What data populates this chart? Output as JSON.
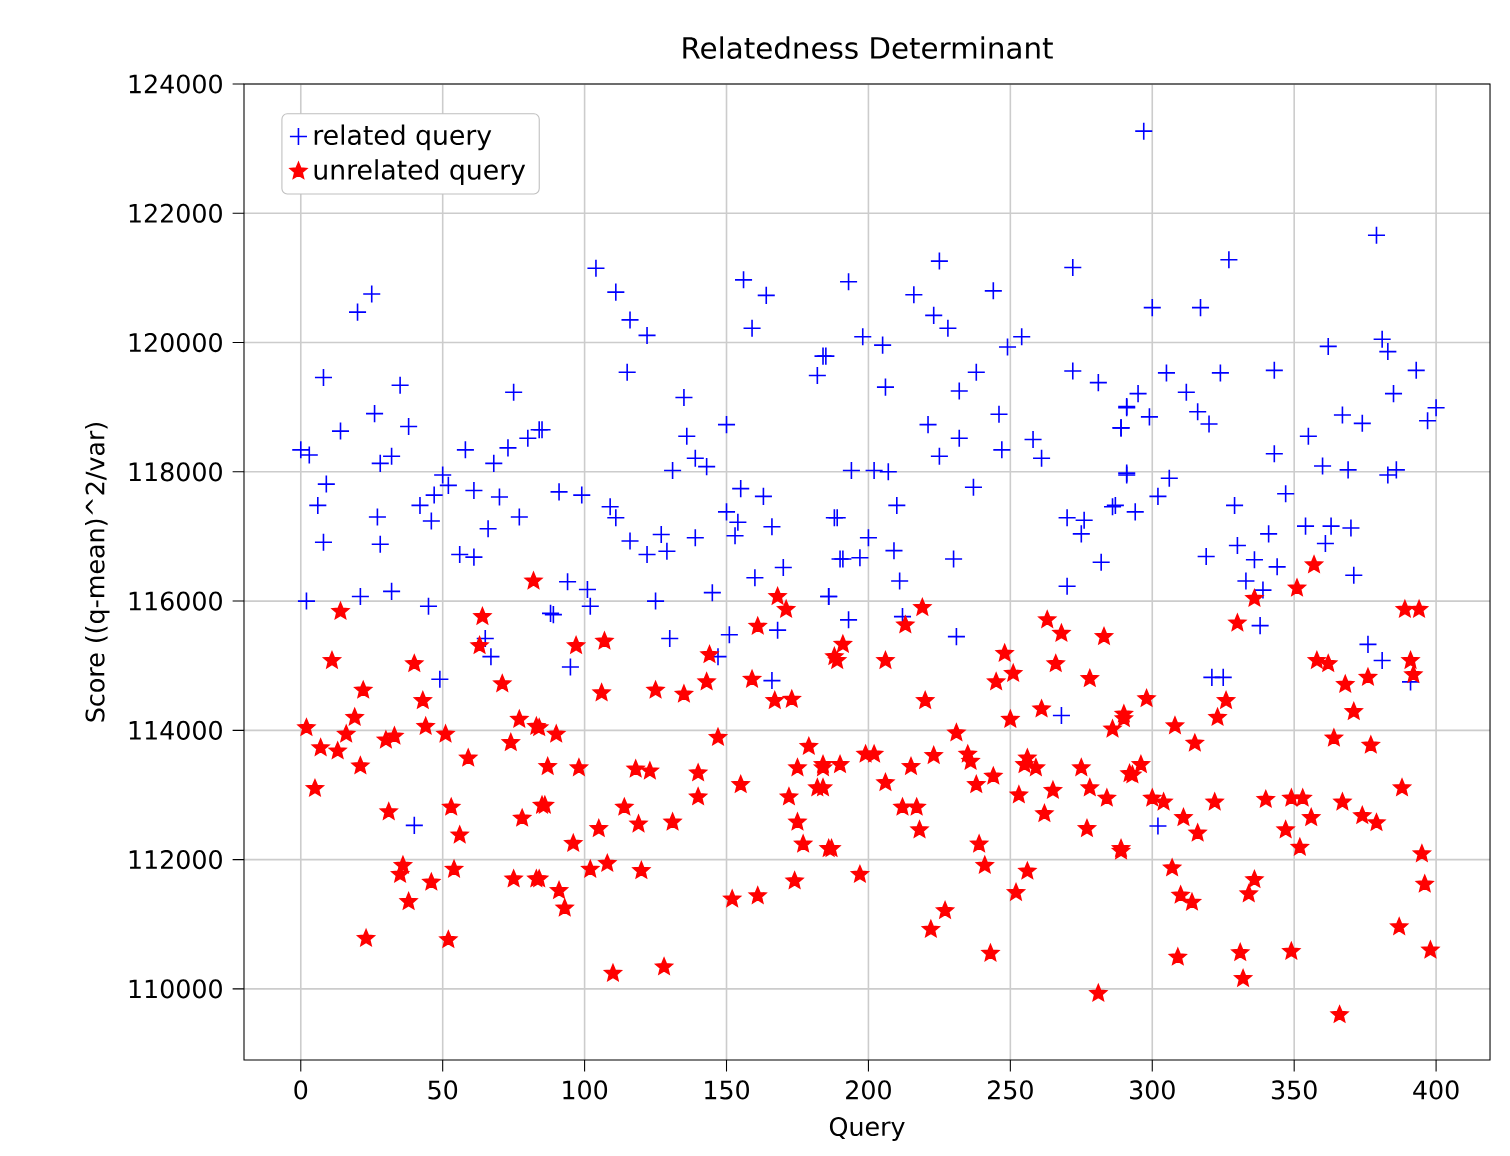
{
  "chart_data": {
    "type": "scatter",
    "title": "Relatedness Determinant",
    "xlabel": "Query",
    "ylabel": "Score ((q-mean)^2/var)",
    "xlim": [
      -20,
      419
    ],
    "ylim": [
      108900,
      124000
    ],
    "xticks": [
      0,
      50,
      100,
      150,
      200,
      250,
      300,
      350,
      400
    ],
    "yticks": [
      110000,
      112000,
      114000,
      116000,
      118000,
      120000,
      122000,
      124000
    ],
    "grid": true,
    "legend": "top left",
    "series": [
      {
        "name": "related query",
        "color": "#0000ff",
        "marker": "cross",
        "x": [
          25,
          20,
          8,
          35,
          75,
          26,
          38,
          14,
          84,
          0,
          3,
          28,
          32,
          58,
          73,
          68,
          80,
          50,
          52,
          9,
          6,
          42,
          47,
          61,
          70,
          27,
          46,
          77,
          66,
          8,
          28,
          56,
          61,
          2,
          21,
          32,
          45,
          65,
          67,
          49,
          40,
          88,
          104,
          111,
          116,
          122,
          115,
          156,
          164,
          159,
          185,
          182,
          85,
          135,
          150,
          136,
          139,
          131,
          143,
          91,
          99,
          109,
          111,
          116,
          122,
          127,
          129,
          139,
          155,
          163,
          150,
          154,
          153,
          166,
          188,
          190,
          170,
          160,
          94,
          101,
          145,
          125,
          186,
          89,
          102,
          168,
          151,
          130,
          147,
          95,
          166,
          225,
          193,
          272,
          216,
          244,
          223,
          228,
          198,
          205,
          249,
          254,
          184,
          238,
          232,
          272,
          281,
          206,
          246,
          221,
          232,
          225,
          247,
          258,
          261,
          289,
          291,
          194,
          202,
          207,
          291,
          237,
          210,
          189,
          270,
          276,
          275,
          287,
          200,
          191,
          197,
          209,
          230,
          282,
          211,
          270,
          186,
          193,
          212,
          231,
          268,
          297,
          379,
          327,
          300,
          317,
          362,
          381,
          383,
          305,
          324,
          343,
          393,
          312,
          295,
          291,
          299,
          316,
          320,
          385,
          400,
          397,
          367,
          374,
          289,
          355,
          343,
          360,
          369,
          383,
          386,
          291,
          306,
          302,
          347,
          294,
          329,
          286,
          341,
          354,
          363,
          370,
          361,
          330,
          319,
          336,
          344,
          371,
          333,
          339,
          338,
          376,
          381,
          391,
          321,
          325,
          302
        ],
        "values": [
          120750,
          120470,
          119460,
          119340,
          119230,
          118900,
          118700,
          118630,
          118650,
          118340,
          118260,
          118130,
          118240,
          118340,
          118370,
          118130,
          118520,
          117950,
          117790,
          117810,
          117480,
          117480,
          117640,
          117710,
          117610,
          117300,
          117240,
          117300,
          117120,
          116910,
          116880,
          116720,
          116680,
          116000,
          116070,
          116150,
          115920,
          115420,
          115140,
          114790,
          112530,
          115810,
          121150,
          120780,
          120350,
          120110,
          119540,
          120970,
          120730,
          120220,
          119790,
          119490,
          118650,
          119150,
          118730,
          118550,
          118210,
          118020,
          118080,
          117690,
          117640,
          117460,
          117290,
          116930,
          116720,
          117030,
          116770,
          116980,
          117740,
          117620,
          117380,
          117220,
          117010,
          117150,
          117290,
          116650,
          116520,
          116360,
          116300,
          116180,
          116130,
          116000,
          116070,
          115790,
          115920,
          115550,
          115480,
          115420,
          115140,
          114980,
          114770,
          121260,
          120940,
          121160,
          120740,
          120800,
          120420,
          120220,
          120090,
          119960,
          119930,
          120090,
          119790,
          119540,
          119250,
          119560,
          119380,
          119310,
          118890,
          118730,
          118520,
          118240,
          118340,
          118500,
          118210,
          118680,
          119010,
          118020,
          118020,
          118000,
          117980,
          117760,
          117480,
          117290,
          117290,
          117250,
          117040,
          117480,
          116980,
          116650,
          116670,
          116780,
          116650,
          116600,
          116310,
          116230,
          116070,
          115710,
          115760,
          115450,
          114230,
          123270,
          121660,
          121280,
          120540,
          120540,
          119940,
          120050,
          119860,
          119530,
          119530,
          119570,
          119570,
          119230,
          119210,
          118990,
          118850,
          118930,
          118740,
          119210,
          118990,
          118790,
          118880,
          118750,
          118680,
          118550,
          118280,
          118090,
          118030,
          117950,
          118030,
          117950,
          117900,
          117620,
          117660,
          117380,
          117480,
          117460,
          117040,
          117160,
          117160,
          117130,
          116890,
          116860,
          116690,
          116640,
          116530,
          116400,
          116310,
          116170,
          115620,
          115330,
          115080,
          114750,
          114820,
          114820,
          112520
        ]
      },
      {
        "name": "unrelated query",
        "color": "#ff0000",
        "marker": "star",
        "x": [
          82,
          14,
          64,
          63,
          11,
          40,
          22,
          71,
          43,
          2,
          19,
          16,
          7,
          13,
          44,
          51,
          30,
          33,
          59,
          74,
          77,
          83,
          21,
          5,
          31,
          53,
          56,
          78,
          85,
          36,
          35,
          46,
          54,
          38,
          75,
          83,
          23,
          52,
          168,
          171,
          161,
          97,
          107,
          144,
          188,
          106,
          125,
          135,
          143,
          159,
          167,
          173,
          84,
          90,
          147,
          179,
          87,
          98,
          118,
          123,
          140,
          175,
          184,
          155,
          182,
          86,
          114,
          140,
          172,
          119,
          131,
          105,
          175,
          96,
          177,
          186,
          102,
          108,
          120,
          84,
          91,
          93,
          152,
          161,
          174,
          110,
          128,
          219,
          213,
          263,
          268,
          283,
          191,
          189,
          206,
          248,
          266,
          251,
          245,
          278,
          220,
          261,
          290,
          250,
          286,
          231,
          199,
          202,
          223,
          235,
          236,
          256,
          259,
          255,
          190,
          184,
          215,
          275,
          292,
          244,
          238,
          206,
          265,
          278,
          184,
          253,
          284,
          212,
          217,
          262,
          218,
          277,
          239,
          187,
          289,
          241,
          256,
          197,
          252,
          227,
          222,
          243,
          281,
          357,
          351,
          336,
          389,
          394,
          330,
          358,
          362,
          391,
          392,
          368,
          376,
          326,
          323,
          298,
          290,
          371,
          308,
          315,
          364,
          377,
          296,
          293,
          388,
          300,
          304,
          322,
          340,
          349,
          353,
          367,
          356,
          374,
          379,
          311,
          316,
          347,
          352,
          289,
          395,
          307,
          336,
          396,
          334,
          310,
          314,
          387,
          309,
          331,
          349,
          398,
          332,
          366
        ],
        "values": [
          116310,
          115840,
          115760,
          115310,
          115080,
          115030,
          114620,
          114720,
          114460,
          114040,
          114200,
          113940,
          113730,
          113680,
          114060,
          113940,
          113850,
          113910,
          113570,
          113810,
          114170,
          114060,
          113450,
          113100,
          112740,
          112810,
          112380,
          112640,
          112840,
          111910,
          111770,
          111650,
          111850,
          111350,
          111700,
          111700,
          110780,
          110760,
          116070,
          115870,
          115610,
          115310,
          115380,
          115170,
          115140,
          114580,
          114620,
          114560,
          114750,
          114790,
          114460,
          114480,
          114040,
          113940,
          113890,
          113750,
          113440,
          113420,
          113400,
          113370,
          113340,
          113420,
          113470,
          113160,
          113110,
          112840,
          112810,
          112970,
          112970,
          112550,
          112580,
          112480,
          112580,
          112250,
          112240,
          112170,
          111850,
          111940,
          111830,
          111700,
          111520,
          111250,
          111390,
          111440,
          111670,
          110240,
          110340,
          115900,
          115630,
          115710,
          115500,
          115450,
          115330,
          115080,
          115080,
          115190,
          115030,
          114880,
          114750,
          114800,
          114460,
          114330,
          114250,
          114170,
          114020,
          113960,
          113630,
          113630,
          113610,
          113630,
          113520,
          113570,
          113420,
          113470,
          113470,
          113420,
          113440,
          113420,
          113330,
          113290,
          113160,
          113190,
          113070,
          113110,
          113110,
          113000,
          112950,
          112810,
          112810,
          112710,
          112460,
          112480,
          112240,
          112170,
          112170,
          111910,
          111820,
          111770,
          111490,
          111210,
          110920,
          110550,
          109930,
          116560,
          116200,
          116040,
          115870,
          115870,
          115660,
          115080,
          115030,
          115080,
          114860,
          114710,
          114820,
          114460,
          114200,
          114490,
          114180,
          114290,
          114070,
          113800,
          113880,
          113770,
          113470,
          113310,
          113110,
          112950,
          112890,
          112890,
          112930,
          112950,
          112950,
          112890,
          112650,
          112680,
          112570,
          112650,
          112410,
          112460,
          112190,
          112130,
          112090,
          111870,
          111690,
          111620,
          111470,
          111450,
          111340,
          110960,
          110490,
          110560,
          110580,
          110600,
          110160,
          109600
        ]
      }
    ]
  }
}
